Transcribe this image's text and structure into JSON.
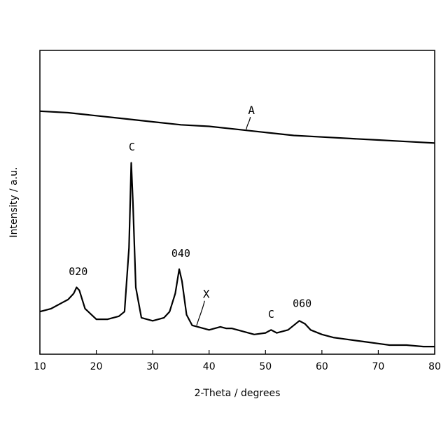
{
  "chart_data": {
    "type": "line",
    "xlabel": "2-Theta / degrees",
    "ylabel": "Intensity / a.u.",
    "xlim": [
      10,
      80
    ],
    "ylim": [
      0,
      100
    ],
    "xticks": [
      "10",
      "20",
      "30",
      "40",
      "50",
      "60",
      "70",
      "80"
    ],
    "grid": false,
    "series": [
      {
        "name": "A",
        "x": [
          10,
          15,
          20,
          25,
          30,
          35,
          40,
          45,
          50,
          55,
          60,
          65,
          70,
          75,
          80
        ],
        "y": [
          80,
          79.5,
          78.5,
          77.5,
          76.5,
          75.5,
          75,
          74,
          73,
          72,
          71.5,
          71,
          70.5,
          70,
          69.5
        ]
      },
      {
        "name": "X",
        "x": [
          10,
          12,
          14,
          15,
          16,
          16.5,
          17,
          18,
          20,
          22,
          24,
          25,
          25.8,
          26.2,
          26.5,
          27,
          28,
          30,
          32,
          33,
          34,
          34.7,
          35.2,
          36,
          37,
          38,
          40,
          42,
          43,
          44,
          46,
          48,
          50,
          51,
          52,
          54,
          55,
          56,
          57,
          58,
          60,
          62,
          64,
          66,
          68,
          70,
          72,
          75,
          78,
          80
        ],
        "y": [
          14,
          15,
          17,
          18,
          20,
          22,
          21,
          15,
          11.5,
          11.5,
          12.5,
          14,
          35,
          63,
          50,
          22,
          12,
          11,
          12,
          14,
          20,
          28,
          24,
          13,
          9.5,
          9,
          8,
          9,
          8.5,
          8.5,
          7.5,
          6.5,
          7,
          8,
          7,
          8,
          9.5,
          11,
          10,
          8,
          6.5,
          5.5,
          5,
          4.5,
          4,
          3.5,
          3,
          3,
          2.5,
          2.5
        ]
      }
    ],
    "annotations": [
      {
        "text": "A",
        "x": 47.5,
        "y": 79
      },
      {
        "text": "X",
        "x": 39.5,
        "y": 18.5
      },
      {
        "text": "020",
        "x": 16.8,
        "y": 26
      },
      {
        "text": "C",
        "x": 26.3,
        "y": 67
      },
      {
        "text": "040",
        "x": 35,
        "y": 32
      },
      {
        "text": "C",
        "x": 51,
        "y": 12
      },
      {
        "text": "060",
        "x": 56.5,
        "y": 15.5
      }
    ]
  }
}
